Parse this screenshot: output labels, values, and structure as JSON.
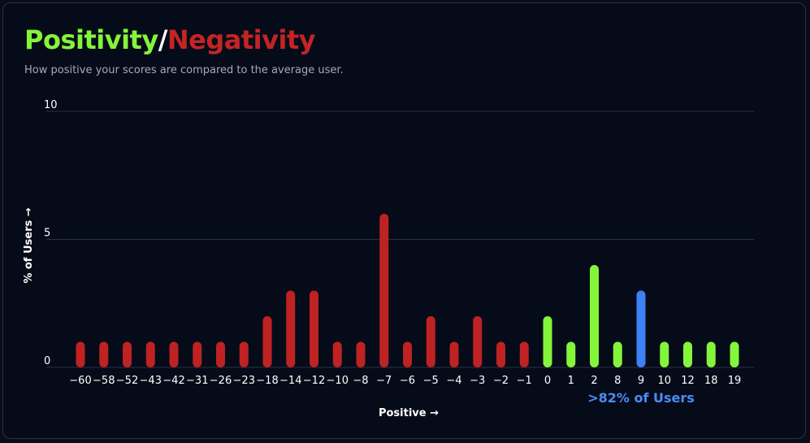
{
  "header": {
    "title_positive": "Positivity",
    "title_separator": "/",
    "title_negative": "Negativity",
    "subtitle": "How positive your scores are compared to the average user."
  },
  "colors": {
    "positive": "#83f53a",
    "negative": "#be2222",
    "highlight": "#3d82f5",
    "gridline": "#2b3242",
    "text": "#ffffff",
    "callout": "#4a8cf7"
  },
  "chart_data": {
    "type": "bar",
    "title": "Positivity/Negativity",
    "subtitle": "How positive your scores are compared to the average user.",
    "xlabel": "Positive →",
    "ylabel": "% of Users →",
    "ylim": [
      0,
      10
    ],
    "yticks": [
      "0",
      "5",
      "10"
    ],
    "grid": true,
    "categories": [
      "−60",
      "−58",
      "−52",
      "−43",
      "−42",
      "−31",
      "−26",
      "−23",
      "−18",
      "−14",
      "−12",
      "−10",
      "−8",
      "−7",
      "−6",
      "−5",
      "−4",
      "−3",
      "−2",
      "−1",
      "0",
      "1",
      "2",
      "8",
      "9",
      "10",
      "12",
      "18",
      "19"
    ],
    "values": [
      1,
      1,
      1,
      1,
      1,
      1,
      1,
      1,
      2,
      3,
      3,
      1,
      1,
      6,
      1,
      2,
      1,
      2,
      1,
      1,
      2,
      1,
      4,
      1,
      3,
      1,
      1,
      1,
      1
    ],
    "bar_colors": [
      "negative",
      "negative",
      "negative",
      "negative",
      "negative",
      "negative",
      "negative",
      "negative",
      "negative",
      "negative",
      "negative",
      "negative",
      "negative",
      "negative",
      "negative",
      "negative",
      "negative",
      "negative",
      "negative",
      "negative",
      "positive",
      "positive",
      "positive",
      "positive",
      "highlight",
      "positive",
      "positive",
      "positive",
      "positive"
    ],
    "highlight_category": "9",
    "annotation": ">82% of Users"
  }
}
